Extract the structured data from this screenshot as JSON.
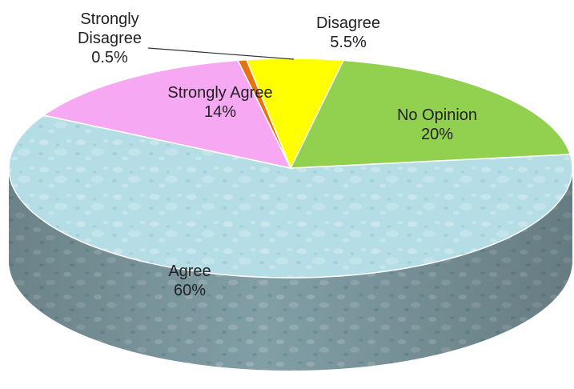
{
  "chart_data": {
    "type": "pie",
    "style": "3d",
    "title": "",
    "slices": [
      {
        "label": "Agree",
        "value": 60,
        "value_label": "60%",
        "color": "#b4dde6",
        "label_pos": "inside"
      },
      {
        "label": "Strongly Agree",
        "value": 14,
        "value_label": "14%",
        "color": "#f7a8f2",
        "label_pos": "inside"
      },
      {
        "label": "Strongly Disagree",
        "value": 0.5,
        "value_label": "0.5%",
        "color": "#e8720c",
        "label_pos": "outside-leader"
      },
      {
        "label": "Disagree",
        "value": 5.5,
        "value_label": "5.5%",
        "color": "#ffff00",
        "label_pos": "outside"
      },
      {
        "label": "No Opinion",
        "value": 20,
        "value_label": "20%",
        "color": "#92d050",
        "label_pos": "inside"
      }
    ]
  }
}
